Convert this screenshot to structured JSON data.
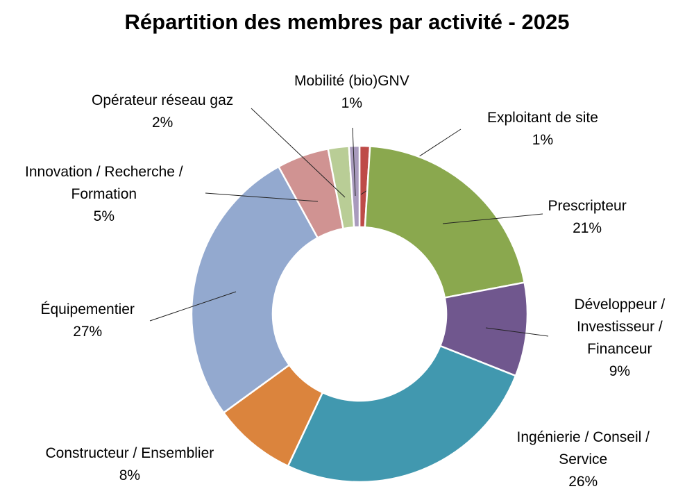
{
  "chart_data": {
    "type": "pie",
    "variant": "donut",
    "title": "Répartition des membres par activité - 2025",
    "slices": [
      {
        "label": "Exploitant de site",
        "lines": [
          "Exploitant de site"
        ],
        "value": 1,
        "pct_label": "1%",
        "color": "#BE4B48"
      },
      {
        "label": "Prescripteur",
        "lines": [
          "Prescripteur"
        ],
        "value": 21,
        "pct_label": "21%",
        "color": "#8AA84E"
      },
      {
        "label": "Développeur / Investisseur / Financeur",
        "lines": [
          "Développeur /",
          "Investisseur /",
          "Financeur"
        ],
        "value": 9,
        "pct_label": "9%",
        "color": "#70578E"
      },
      {
        "label": "Ingénierie / Conseil / Service",
        "lines": [
          "Ingénierie / Conseil /",
          "Service"
        ],
        "value": 26,
        "pct_label": "26%",
        "color": "#4198AF"
      },
      {
        "label": "Constructeur / Ensemblier",
        "lines": [
          "Constructeur / Ensemblier"
        ],
        "value": 8,
        "pct_label": "8%",
        "color": "#DB843D"
      },
      {
        "label": "Équipementier",
        "lines": [
          "Équipementier"
        ],
        "value": 27,
        "pct_label": "27%",
        "color": "#93A9CF"
      },
      {
        "label": "Innovation / Recherche / Formation",
        "lines": [
          "Innovation / Recherche /",
          "Formation"
        ],
        "value": 5,
        "pct_label": "5%",
        "color": "#D09392"
      },
      {
        "label": "Opérateur réseau gaz",
        "lines": [
          "Opérateur réseau gaz"
        ],
        "value": 2,
        "pct_label": "2%",
        "color": "#B9CD96"
      },
      {
        "label": "Mobilité (bio)GNV",
        "lines": [
          "Mobilité (bio)GNV"
        ],
        "value": 1,
        "pct_label": "1%",
        "color": "#A99BBD"
      }
    ],
    "start_angle_deg": 0,
    "direction": "clockwise",
    "legend": "none",
    "data_labels": "outside with leader lines"
  }
}
